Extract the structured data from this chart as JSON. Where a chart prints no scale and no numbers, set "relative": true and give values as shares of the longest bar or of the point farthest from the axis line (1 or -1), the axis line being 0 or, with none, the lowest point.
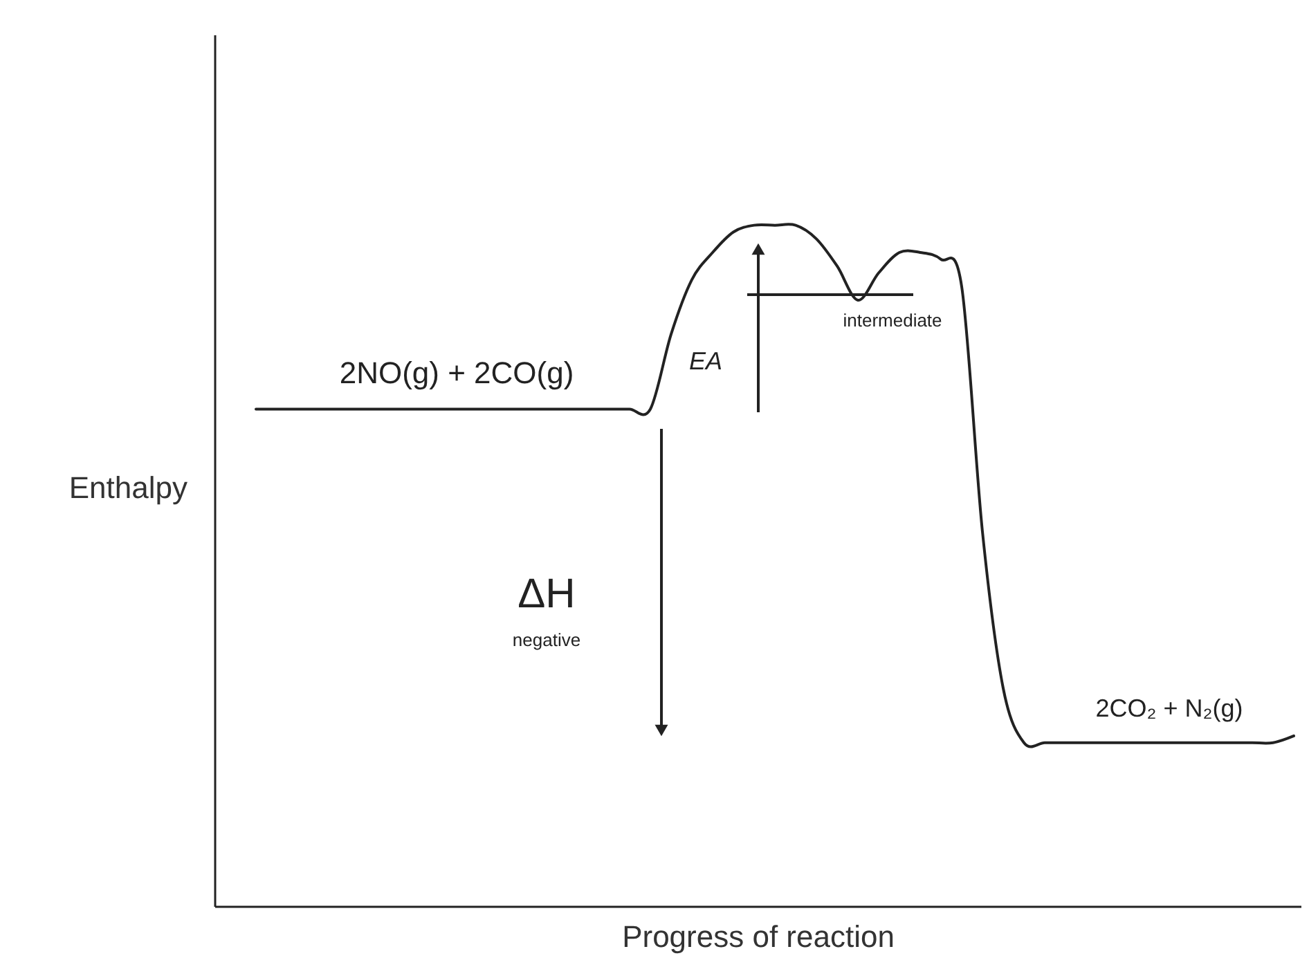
{
  "chart_data": {
    "type": "line",
    "relative": true,
    "xlabel": "Progress of reaction",
    "ylabel": "Enthalpy",
    "categories": [
      null,
      null,
      null,
      null,
      null,
      null,
      null,
      null,
      null,
      null,
      null,
      null,
      null,
      null,
      null,
      null,
      null,
      null,
      null,
      null,
      null,
      null,
      null,
      null,
      null,
      null,
      null,
      null,
      null,
      null,
      null,
      null,
      null,
      null,
      null,
      null,
      null,
      null,
      null,
      null,
      null,
      null,
      null,
      null,
      null,
      null,
      null,
      null,
      null,
      null,
      null
    ],
    "series": [
      {
        "color": "#222222",
        "values": [
          0.73,
          0.73,
          0.73,
          0.73,
          0.73,
          0.73,
          0.73,
          0.73,
          0.73,
          0.73,
          0.73,
          0.73,
          0.73,
          0.73,
          0.73,
          0.73,
          0.73,
          0.73,
          0.73,
          0.73,
          0.84,
          0.92,
          0.96,
          0.99,
          1.0,
          1.0,
          1.0,
          0.98,
          0.94,
          0.89,
          0.93,
          0.96,
          0.96,
          0.95,
          0.91,
          0.55,
          0.32,
          0.24,
          0.24,
          0.24,
          0.24,
          0.24,
          0.24,
          0.24,
          0.24,
          0.24,
          0.24,
          0.24,
          0.24,
          0.24,
          0.25
        ]
      }
    ],
    "marker": "none",
    "line_style": "solid",
    "grid": false,
    "tick_labels": false,
    "annotations": [
      "2NO(g)  +  2CO(g)",
      "EA",
      "intermediate",
      "ΔH",
      "negative",
      "2CO₂  +  N₂(g)"
    ]
  }
}
